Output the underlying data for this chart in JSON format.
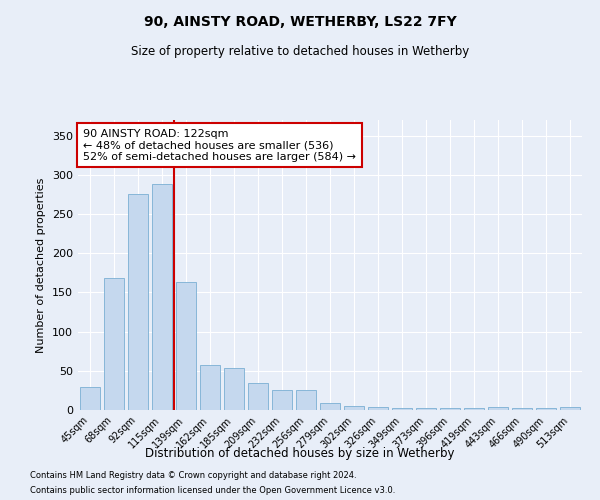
{
  "title": "90, AINSTY ROAD, WETHERBY, LS22 7FY",
  "subtitle": "Size of property relative to detached houses in Wetherby",
  "xlabel": "Distribution of detached houses by size in Wetherby",
  "ylabel": "Number of detached properties",
  "categories": [
    "45sqm",
    "68sqm",
    "92sqm",
    "115sqm",
    "139sqm",
    "162sqm",
    "185sqm",
    "209sqm",
    "232sqm",
    "256sqm",
    "279sqm",
    "302sqm",
    "326sqm",
    "349sqm",
    "373sqm",
    "396sqm",
    "419sqm",
    "443sqm",
    "466sqm",
    "490sqm",
    "513sqm"
  ],
  "values": [
    29,
    168,
    275,
    288,
    163,
    58,
    53,
    35,
    25,
    25,
    9,
    5,
    4,
    2,
    2,
    2,
    2,
    4,
    2,
    2,
    4
  ],
  "bar_color": "#c5d8ee",
  "bar_edge_color": "#7aafd4",
  "annotation_text": "90 AINSTY ROAD: 122sqm\n← 48% of detached houses are smaller (536)\n52% of semi-detached houses are larger (584) →",
  "annotation_box_color": "#ffffff",
  "annotation_box_edge": "#cc0000",
  "highlight_line_color": "#cc0000",
  "ylim": [
    0,
    370
  ],
  "yticks": [
    0,
    50,
    100,
    150,
    200,
    250,
    300,
    350
  ],
  "footnote1": "Contains HM Land Registry data © Crown copyright and database right 2024.",
  "footnote2": "Contains public sector information licensed under the Open Government Licence v3.0.",
  "background_color": "#e8eef8",
  "grid_color": "#ffffff"
}
